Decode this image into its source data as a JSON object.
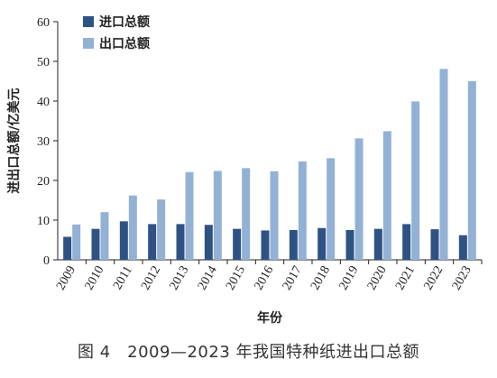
{
  "caption": "图 4　2009—2023 年我国特种纸进出口总额",
  "chart_data": {
    "type": "bar",
    "xlabel": "年份",
    "ylabel": "进出口总额/亿美元",
    "ylim": [
      0,
      60
    ],
    "yticks": [
      0,
      10,
      20,
      30,
      40,
      50,
      60
    ],
    "legend_position": "top-left",
    "grid": false,
    "categories": [
      "2009",
      "2010",
      "2011",
      "2012",
      "2013",
      "2014",
      "2015",
      "2016",
      "2017",
      "2018",
      "2019",
      "2020",
      "2021",
      "2022",
      "2023"
    ],
    "series": [
      {
        "name": "进口总额",
        "color": "#2f5284",
        "values": [
          5.8,
          7.8,
          9.7,
          9.0,
          9.0,
          8.8,
          7.8,
          7.4,
          7.5,
          8.0,
          7.5,
          7.8,
          9.0,
          7.7,
          6.2
        ]
      },
      {
        "name": "出口总额",
        "color": "#93b1d4",
        "values": [
          8.9,
          12.0,
          16.2,
          15.2,
          22.1,
          22.4,
          23.1,
          22.3,
          24.8,
          25.6,
          30.6,
          32.4,
          39.9,
          48.1,
          45.0
        ]
      }
    ]
  }
}
